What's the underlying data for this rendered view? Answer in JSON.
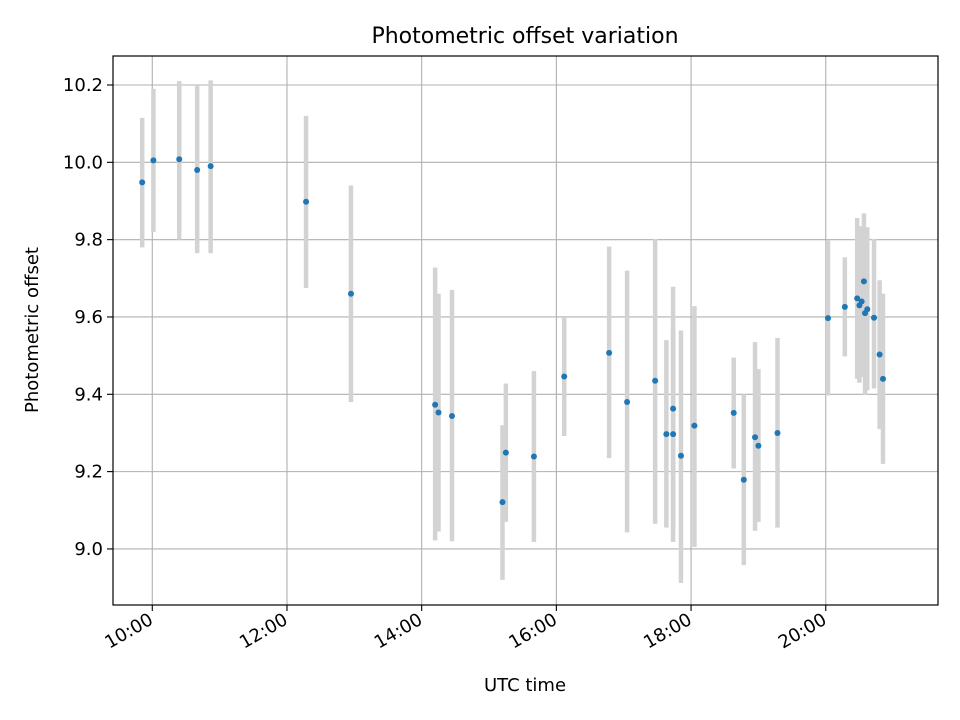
{
  "chart_data": {
    "type": "scatter",
    "title": "Photometric offset variation",
    "xlabel": "UTC time",
    "ylabel": "Photometric offset",
    "x_format": "HH:MM",
    "xlim": [
      "09:25",
      "21:40"
    ],
    "ylim": [
      8.855,
      10.275
    ],
    "x_ticks": [
      "10:00",
      "12:00",
      "14:00",
      "16:00",
      "18:00",
      "20:00"
    ],
    "y_ticks": [
      9.0,
      9.2,
      9.4,
      9.6,
      9.8,
      10.0,
      10.2
    ],
    "grid": true,
    "point_color": "#1f77b4",
    "errorbar_color": "#d3d3d3",
    "series": [
      {
        "points": [
          {
            "x": "09:51",
            "y": 9.948,
            "lo": 9.78,
            "hi": 10.115
          },
          {
            "x": "10:01",
            "y": 10.005,
            "lo": 9.82,
            "hi": 10.19
          },
          {
            "x": "10:24",
            "y": 10.008,
            "lo": 9.8,
            "hi": 10.21
          },
          {
            "x": "10:40",
            "y": 9.98,
            "lo": 9.765,
            "hi": 10.2
          },
          {
            "x": "10:52",
            "y": 9.99,
            "lo": 9.765,
            "hi": 10.212
          },
          {
            "x": "12:17",
            "y": 9.898,
            "lo": 9.675,
            "hi": 10.12
          },
          {
            "x": "12:57",
            "y": 9.66,
            "lo": 9.38,
            "hi": 9.94
          },
          {
            "x": "14:12",
            "y": 9.373,
            "lo": 9.022,
            "hi": 9.728
          },
          {
            "x": "14:15",
            "y": 9.353,
            "lo": 9.045,
            "hi": 9.66
          },
          {
            "x": "14:27",
            "y": 9.344,
            "lo": 9.02,
            "hi": 9.67
          },
          {
            "x": "15:12",
            "y": 9.121,
            "lo": 8.92,
            "hi": 9.32
          },
          {
            "x": "15:15",
            "y": 9.249,
            "lo": 9.07,
            "hi": 9.428
          },
          {
            "x": "15:40",
            "y": 9.239,
            "lo": 9.018,
            "hi": 9.46
          },
          {
            "x": "16:07",
            "y": 9.446,
            "lo": 9.292,
            "hi": 9.6
          },
          {
            "x": "16:47",
            "y": 9.507,
            "lo": 9.235,
            "hi": 9.782
          },
          {
            "x": "17:03",
            "y": 9.38,
            "lo": 9.043,
            "hi": 9.72
          },
          {
            "x": "17:28",
            "y": 9.435,
            "lo": 9.065,
            "hi": 9.802
          },
          {
            "x": "17:38",
            "y": 9.297,
            "lo": 9.055,
            "hi": 9.54
          },
          {
            "x": "17:44",
            "y": 9.363,
            "lo": 9.048,
            "hi": 9.678
          },
          {
            "x": "17:44",
            "y": 9.297,
            "lo": 9.018,
            "hi": 9.575
          },
          {
            "x": "17:51",
            "y": 9.241,
            "lo": 8.912,
            "hi": 9.565
          },
          {
            "x": "18:03",
            "y": 9.319,
            "lo": 9.005,
            "hi": 9.628
          },
          {
            "x": "18:38",
            "y": 9.352,
            "lo": 9.208,
            "hi": 9.495
          },
          {
            "x": "18:47",
            "y": 9.179,
            "lo": 8.958,
            "hi": 9.4
          },
          {
            "x": "18:57",
            "y": 9.289,
            "lo": 9.047,
            "hi": 9.535
          },
          {
            "x": "19:00",
            "y": 9.267,
            "lo": 9.07,
            "hi": 9.465
          },
          {
            "x": "19:17",
            "y": 9.3,
            "lo": 9.055,
            "hi": 9.546
          },
          {
            "x": "20:02",
            "y": 9.597,
            "lo": 9.397,
            "hi": 9.798
          },
          {
            "x": "20:17",
            "y": 9.626,
            "lo": 9.498,
            "hi": 9.754
          },
          {
            "x": "20:28",
            "y": 9.648,
            "lo": 9.44,
            "hi": 9.856
          },
          {
            "x": "20:30",
            "y": 9.63,
            "lo": 9.43,
            "hi": 9.83
          },
          {
            "x": "20:32",
            "y": 9.64,
            "lo": 9.445,
            "hi": 9.835
          },
          {
            "x": "20:34",
            "y": 9.692,
            "lo": 9.515,
            "hi": 9.868
          },
          {
            "x": "20:35",
            "y": 9.61,
            "lo": 9.398,
            "hi": 9.825
          },
          {
            "x": "20:37",
            "y": 9.62,
            "lo": 9.41,
            "hi": 9.832
          },
          {
            "x": "20:43",
            "y": 9.598,
            "lo": 9.415,
            "hi": 9.802
          },
          {
            "x": "20:48",
            "y": 9.503,
            "lo": 9.31,
            "hi": 9.695
          },
          {
            "x": "20:51",
            "y": 9.44,
            "lo": 9.22,
            "hi": 9.66
          }
        ]
      }
    ]
  }
}
